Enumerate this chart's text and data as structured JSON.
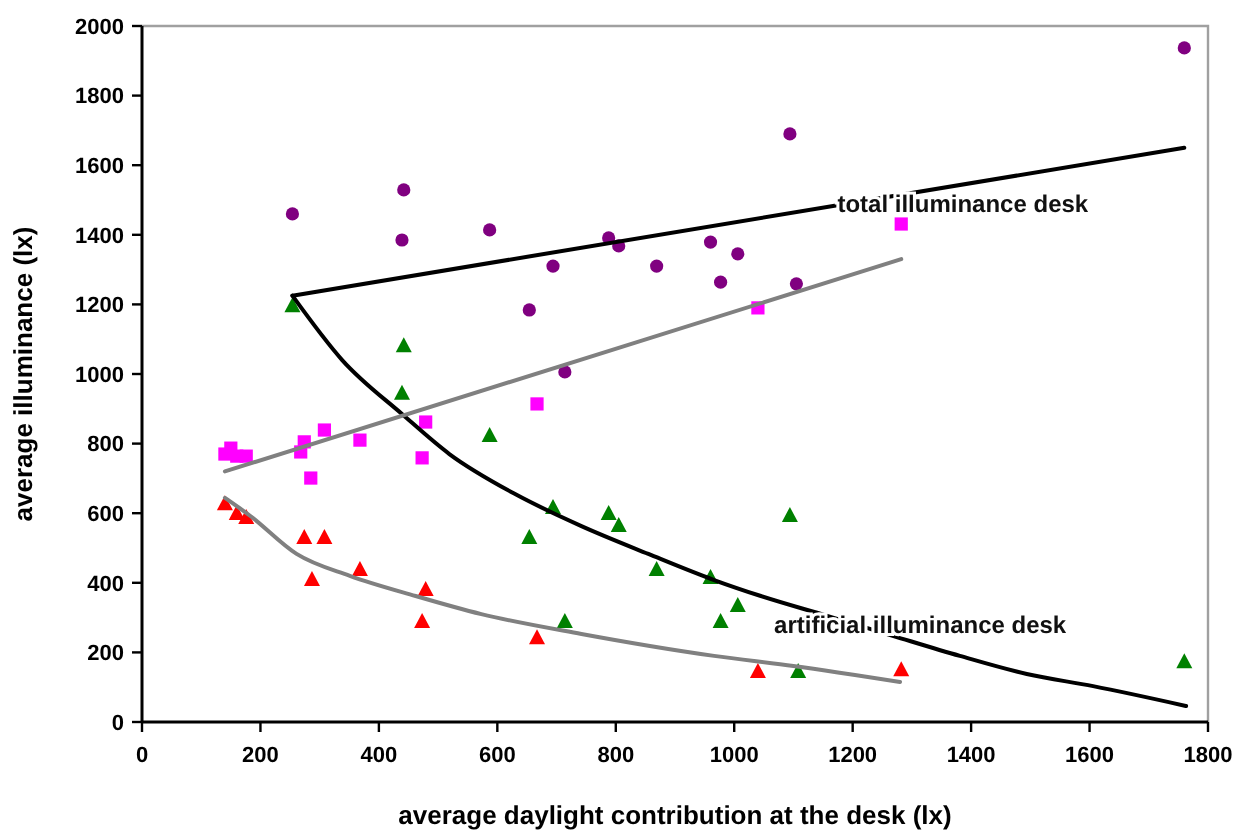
{
  "chart_data": {
    "type": "scatter",
    "xlabel": "average daylight contribution at the desk (lx)",
    "ylabel": "average illuminance (lx)",
    "xlim": [
      0,
      1800
    ],
    "xticks": [
      0,
      200,
      400,
      600,
      800,
      1000,
      1200,
      1400,
      1600,
      1800
    ],
    "ylim": [
      0,
      2000
    ],
    "yticks": [
      0,
      200,
      400,
      600,
      800,
      1000,
      1200,
      1400,
      1600,
      1800,
      2000
    ],
    "grid": false,
    "series": [
      {
        "marker": "circle",
        "color": "#800080",
        "x": [
          254,
          442,
          439,
          587,
          694,
          654,
          714,
          788,
          805,
          869,
          960,
          1006,
          977,
          1094,
          1105,
          1760
        ],
        "values": [
          1460,
          1529,
          1385,
          1414,
          1310,
          1184,
          1006,
          1391,
          1368,
          1310,
          1379,
          1345,
          1264,
          1690,
          1259,
          1937
        ]
      },
      {
        "marker": "triangle",
        "color": "#008000",
        "x": [
          254,
          442,
          439,
          587,
          654,
          694,
          714,
          788,
          805,
          869,
          960,
          977,
          1006,
          1094,
          1108,
          1760
        ],
        "values": [
          1195,
          1080,
          943,
          822,
          529,
          615,
          287,
          598,
          563,
          437,
          414,
          287,
          333,
          592,
          144,
          172
        ]
      },
      {
        "marker": "square",
        "color": "#ff00ff",
        "x": [
          140,
          150,
          160,
          176,
          268,
          274,
          285,
          308,
          368,
          473,
          479,
          667,
          1040,
          1282
        ],
        "values": [
          770,
          787,
          764,
          764,
          776,
          805,
          701,
          839,
          810,
          759,
          862,
          914,
          1190,
          1431
        ]
      },
      {
        "marker": "triangle",
        "color": "#ff0000",
        "x": [
          140,
          160,
          176,
          274,
          308,
          287,
          368,
          479,
          473,
          667,
          1040,
          1282
        ],
        "values": [
          626,
          598,
          586,
          529,
          529,
          408,
          437,
          379,
          287,
          241,
          144,
          149
        ]
      },
      {
        "type": "line",
        "marker": "none",
        "color": "#000000",
        "x": [
          254,
          1760
        ],
        "values": [
          1225,
          1650
        ]
      },
      {
        "type": "line",
        "marker": "none",
        "color": "#000000",
        "x": [
          254,
          338,
          439,
          519,
          630,
          742,
          855,
          966,
          1045,
          1157,
          1269,
          1381,
          1494,
          1606,
          1763
        ],
        "values": [
          1225,
          1040,
          885,
          770,
          655,
          563,
          483,
          408,
          362,
          305,
          247,
          190,
          138,
          103,
          46
        ]
      },
      {
        "type": "line",
        "marker": "none",
        "color": "#808080",
        "x": [
          140,
          1282
        ],
        "values": [
          720,
          1330
        ]
      },
      {
        "type": "line",
        "marker": "none",
        "color": "#808080",
        "x": [
          140,
          183,
          261,
          351,
          462,
          573,
          742,
          966,
          1100,
          1280
        ],
        "values": [
          644,
          592,
          483,
          420,
          362,
          310,
          253,
          190,
          161,
          115
        ]
      }
    ],
    "annotations": [
      "total illuminance desk",
      "artificial illuminance desk"
    ]
  }
}
